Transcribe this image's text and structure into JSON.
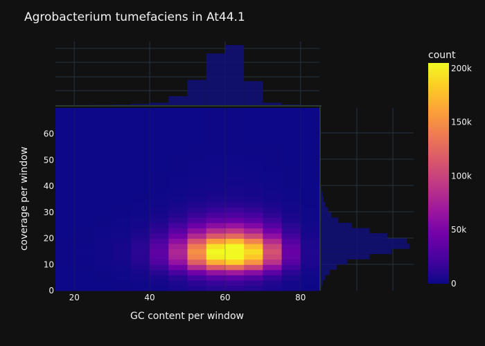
{
  "chart_data": {
    "type": "heatmap",
    "title": "Agrobacterium tumefaciens in At44.1",
    "xlabel": "GC content per window",
    "ylabel": "coverage per window",
    "xlim": [
      15,
      85
    ],
    "ylim": [
      0,
      70
    ],
    "x_ticks": [
      "20",
      "40",
      "60",
      "80"
    ],
    "y_ticks": [
      "0",
      "10",
      "20",
      "30",
      "40",
      "50",
      "60"
    ],
    "x_bins": [
      15,
      20,
      25,
      30,
      35,
      40,
      45,
      50,
      55,
      60,
      65,
      70,
      75,
      80,
      85
    ],
    "y_bins": [
      0,
      2,
      4,
      6,
      8,
      10,
      12,
      14,
      16,
      18,
      20,
      22,
      24,
      26,
      28,
      30,
      32,
      34,
      36,
      38,
      40,
      42,
      44,
      46,
      48,
      50,
      52,
      54,
      56,
      58,
      60,
      62,
      64,
      66,
      68,
      70
    ],
    "x_profile": [
      300,
      600,
      1500,
      4000,
      12000,
      35000,
      80000,
      150000,
      210000,
      230000,
      190000,
      110000,
      40000,
      8000
    ],
    "y_profile": [
      0.05,
      0.08,
      0.15,
      0.3,
      0.55,
      0.8,
      0.95,
      1.0,
      0.92,
      0.75,
      0.55,
      0.4,
      0.28,
      0.18,
      0.12,
      0.08,
      0.05,
      0.03,
      0.02,
      0.015,
      0.01,
      0.008,
      0.006,
      0.005,
      0.004,
      0.003,
      0.002,
      0.002,
      0.001,
      0.001,
      0.001,
      0.001,
      0.001,
      0.001,
      0.001
    ],
    "heatmap_scale": 205000,
    "x_marginal": [
      0.002,
      0.003,
      0.005,
      0.01,
      0.02,
      0.04,
      0.15,
      0.42,
      0.86,
      1.0,
      0.4,
      0.04,
      0.01,
      0.003
    ],
    "y_marginal_bins": [
      0,
      2,
      4,
      6,
      8,
      10,
      12,
      14,
      16,
      18,
      20,
      22,
      24,
      26,
      28,
      30,
      32,
      34,
      36,
      38,
      40
    ],
    "y_marginal": [
      0.01,
      0.02,
      0.05,
      0.1,
      0.18,
      0.3,
      0.55,
      0.8,
      1.0,
      0.97,
      0.75,
      0.55,
      0.35,
      0.2,
      0.12,
      0.08,
      0.05,
      0.03,
      0.02,
      0.01
    ],
    "colorbar": {
      "title": "count",
      "range": [
        0,
        205000
      ],
      "ticks": [
        0,
        50000,
        100000,
        150000,
        200000
      ],
      "tick_labels": [
        "0",
        "50k",
        "100k",
        "150k",
        "200k"
      ],
      "colors": [
        "#0d0887",
        "#46039f",
        "#7201a8",
        "#9c179e",
        "#bd3786",
        "#d8576b",
        "#ed7953",
        "#fb9f3a",
        "#fdca26",
        "#f0f921"
      ]
    },
    "colors": {
      "background": "#111111",
      "marginal_fill": "#11117a",
      "grid": "#283442",
      "text": "#f2f2f2"
    }
  }
}
